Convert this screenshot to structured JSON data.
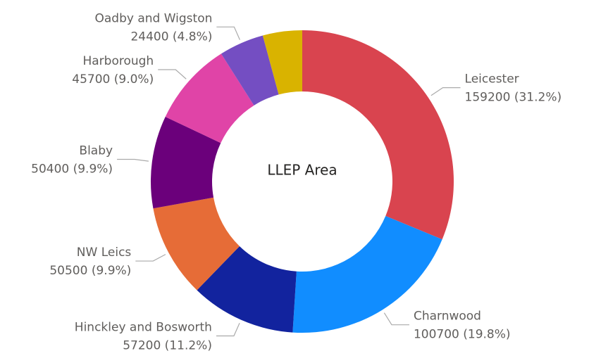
{
  "chart_data": {
    "type": "donut",
    "center_label": "LLEP Area",
    "categories": [
      "Leicester",
      "Charnwood",
      "Hinckley and Bosworth",
      "NW Leics",
      "Blaby",
      "Harborough",
      "Oadby and Wigston",
      null
    ],
    "values": [
      159200,
      100700,
      57200,
      50500,
      50400,
      45700,
      24400,
      21400
    ],
    "value_labels": [
      "159200 (31.2%)",
      "100700 (19.8%)",
      "57200 (11.2%)",
      "50500 (9.9%)",
      "50400 (9.9%)",
      "45700 (9.0%)",
      "24400 (4.8%)",
      null
    ],
    "colors": [
      "#d9444f",
      "#118dff",
      "#12239e",
      "#e66c37",
      "#6b007b",
      "#e044a7",
      "#744ec2",
      "#d9b300"
    ]
  }
}
